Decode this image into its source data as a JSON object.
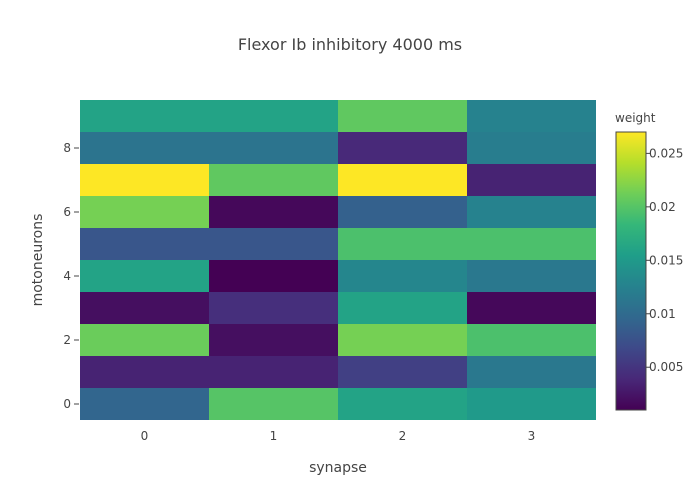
{
  "chart_data": {
    "type": "heatmap",
    "title": "Flexor Ib inhibitory 4000 ms",
    "xlabel": "synapse",
    "ylabel": "motoneurons",
    "x": [
      0,
      1,
      2,
      3
    ],
    "y": [
      0,
      1,
      2,
      3,
      4,
      5,
      6,
      7,
      8,
      9
    ],
    "xlim": [
      -0.5,
      3.5
    ],
    "ylim": [
      -0.5,
      9.5
    ],
    "x_ticks": [
      0,
      1,
      2,
      3
    ],
    "y_ticks": [
      0,
      2,
      4,
      6,
      8
    ],
    "z": [
      [
        0.0095,
        0.02,
        0.016,
        0.015
      ],
      [
        0.0035,
        0.0035,
        0.006,
        0.0115
      ],
      [
        0.021,
        0.002,
        0.0215,
        0.0195
      ],
      [
        0.002,
        0.0045,
        0.016,
        0.0015
      ],
      [
        0.016,
        0.001,
        0.013,
        0.0115
      ],
      [
        0.008,
        0.008,
        0.0195,
        0.0195
      ],
      [
        0.0215,
        0.0015,
        0.009,
        0.0125
      ],
      [
        0.027,
        0.0205,
        0.027,
        0.0035
      ],
      [
        0.011,
        0.011,
        0.004,
        0.012
      ],
      [
        0.016,
        0.016,
        0.0205,
        0.0125
      ]
    ],
    "colorscale": "Viridis",
    "colorscale_stops": [
      "#440154",
      "#482878",
      "#3e4989",
      "#31688e",
      "#26828e",
      "#1f9e89",
      "#35b779",
      "#6ece58",
      "#b5de2b",
      "#fde725"
    ],
    "zmin": 0.001,
    "zmax": 0.027,
    "colorbar": {
      "title": "weight",
      "ticks": [
        0.005,
        0.01,
        0.015,
        0.02,
        0.025
      ],
      "tick_labels": [
        "0.005",
        "0.01",
        "0.015",
        "0.02",
        "0.025"
      ]
    },
    "grid": false
  }
}
